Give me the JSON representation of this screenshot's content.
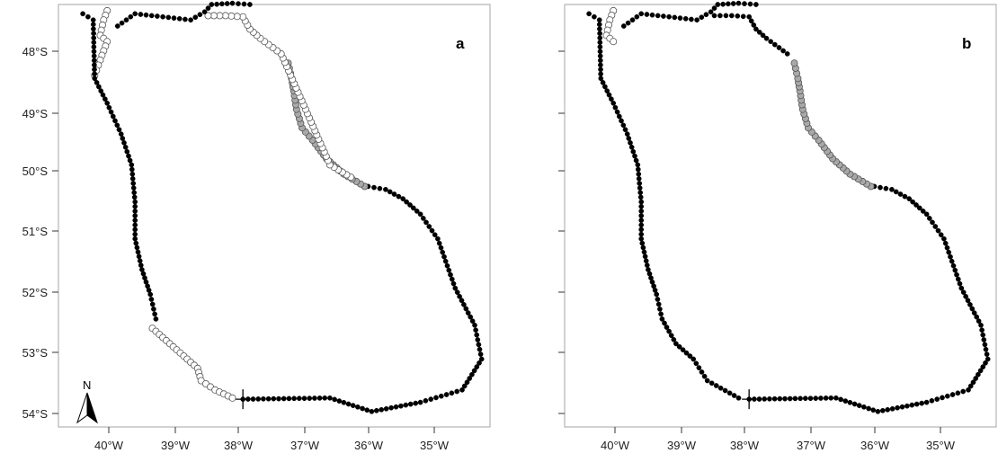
{
  "figure": {
    "panels": [
      {
        "label": "a",
        "x_ticks": [
          "40°W",
          "39°W",
          "38°W",
          "37°W",
          "36°W",
          "35°W"
        ],
        "y_ticks": [
          "48°S",
          "49°S",
          "50°S",
          "51°S",
          "52°S",
          "53°S",
          "54°S"
        ],
        "north_arrow_label": "N",
        "has_north_arrow": true
      },
      {
        "label": "b",
        "x_ticks": [
          "40°W",
          "39°W",
          "38°W",
          "37°W",
          "36°W",
          "35°W"
        ],
        "y_ticks": [
          "48°S",
          "49°S",
          "50°S",
          "51°S",
          "52°S",
          "53°S",
          "54°S"
        ],
        "north_arrow_label": "",
        "has_north_arrow": false
      }
    ]
  },
  "chart_data": [
    {
      "type": "scatter",
      "panel": "a",
      "x_ticks": [
        -40,
        -39,
        -38,
        -37,
        -36,
        -35
      ],
      "y_ticks": [
        -48,
        -49,
        -50,
        -51,
        -52,
        -53,
        -54
      ],
      "xlim": [
        -40.7,
        -34.5
      ],
      "ylim": [
        -54.45,
        -47.6
      ],
      "start_marker": {
        "lon": -38.05,
        "lat": -54.0
      },
      "marker_colors": {
        "black": "#000000",
        "white": "#ffffff",
        "grey": "#a9a9a9"
      },
      "segments": [
        {
          "color": "black",
          "points": [
            [
              -38.05,
              -54.0
            ],
            [
              -36.8,
              -53.98
            ],
            [
              -36.2,
              -54.2
            ],
            [
              -35.5,
              -54.05
            ],
            [
              -34.9,
              -53.85
            ],
            [
              -34.62,
              -53.35
            ],
            [
              -34.72,
              -52.8
            ],
            [
              -35.0,
              -52.2
            ],
            [
              -35.25,
              -51.4
            ],
            [
              -35.5,
              -51.0
            ],
            [
              -35.75,
              -50.75
            ],
            [
              -36.0,
              -50.6
            ],
            [
              -36.25,
              -50.55
            ]
          ]
        },
        {
          "color": "grey",
          "points": [
            [
              -36.3,
              -50.55
            ],
            [
              -36.6,
              -50.35
            ],
            [
              -36.85,
              -50.1
            ],
            [
              -37.05,
              -49.8
            ],
            [
              -37.2,
              -49.6
            ],
            [
              -37.28,
              -49.3
            ],
            [
              -37.32,
              -49.0
            ],
            [
              -37.35,
              -48.8
            ],
            [
              -37.4,
              -48.55
            ]
          ]
        },
        {
          "color": "white",
          "points": [
            [
              -36.5,
              -50.4
            ],
            [
              -36.8,
              -50.2
            ],
            [
              -37.5,
              -48.4
            ],
            [
              -37.8,
              -48.15
            ],
            [
              -37.95,
              -48.0
            ],
            [
              -38.05,
              -47.8
            ],
            [
              -38.3,
              -47.78
            ],
            [
              -38.55,
              -47.78
            ]
          ]
        },
        {
          "color": "black",
          "points": [
            [
              -37.95,
              -47.6
            ],
            [
              -38.2,
              -47.58
            ],
            [
              -38.5,
              -47.6
            ],
            [
              -38.6,
              -47.72
            ],
            [
              -38.8,
              -47.85
            ],
            [
              -39.2,
              -47.8
            ],
            [
              -39.6,
              -47.75
            ],
            [
              -39.85,
              -47.95
            ]
          ]
        },
        {
          "color": "white",
          "points": [
            [
              -40.0,
              -47.7
            ],
            [
              -40.05,
              -47.85
            ],
            [
              -40.1,
              -48.1
            ],
            [
              -40.0,
              -48.2
            ],
            [
              -40.05,
              -48.35
            ],
            [
              -40.1,
              -48.5
            ],
            [
              -40.18,
              -48.75
            ]
          ]
        },
        {
          "color": "black",
          "points": [
            [
              -40.35,
              -47.75
            ],
            [
              -40.2,
              -47.85
            ],
            [
              -40.18,
              -48.8
            ],
            [
              -40.0,
              -49.2
            ],
            [
              -39.8,
              -49.7
            ],
            [
              -39.65,
              -50.2
            ],
            [
              -39.6,
              -50.8
            ],
            [
              -39.6,
              -51.4
            ],
            [
              -39.5,
              -51.9
            ],
            [
              -39.38,
              -52.3
            ],
            [
              -39.3,
              -52.7
            ]
          ]
        },
        {
          "color": "white",
          "points": [
            [
              -39.35,
              -52.85
            ],
            [
              -39.1,
              -53.1
            ],
            [
              -38.85,
              -53.35
            ],
            [
              -38.7,
              -53.5
            ],
            [
              -38.65,
              -53.7
            ],
            [
              -38.45,
              -53.85
            ],
            [
              -38.2,
              -53.98
            ]
          ]
        }
      ]
    },
    {
      "type": "scatter",
      "panel": "b",
      "x_ticks": [
        -40,
        -39,
        -38,
        -37,
        -36,
        -35
      ],
      "y_ticks": [
        -48,
        -49,
        -50,
        -51,
        -52,
        -53,
        -54
      ],
      "xlim": [
        -40.7,
        -34.5
      ],
      "ylim": [
        -54.45,
        -47.6
      ],
      "start_marker": {
        "lon": -38.05,
        "lat": -54.0
      },
      "marker_colors": {
        "black": "#000000",
        "white": "#ffffff",
        "grey": "#a9a9a9"
      },
      "segments": [
        {
          "color": "black",
          "points": [
            [
              -38.05,
              -54.0
            ],
            [
              -36.8,
              -53.98
            ],
            [
              -36.2,
              -54.2
            ],
            [
              -35.5,
              -54.05
            ],
            [
              -34.9,
              -53.85
            ],
            [
              -34.62,
              -53.35
            ],
            [
              -34.72,
              -52.8
            ],
            [
              -35.0,
              -52.2
            ],
            [
              -35.25,
              -51.4
            ],
            [
              -35.5,
              -51.0
            ],
            [
              -35.75,
              -50.75
            ],
            [
              -36.0,
              -50.6
            ],
            [
              -36.25,
              -50.55
            ]
          ]
        },
        {
          "color": "grey",
          "points": [
            [
              -36.3,
              -50.55
            ],
            [
              -36.6,
              -50.35
            ],
            [
              -36.85,
              -50.1
            ],
            [
              -37.05,
              -49.8
            ],
            [
              -37.2,
              -49.6
            ],
            [
              -37.28,
              -49.3
            ],
            [
              -37.32,
              -49.0
            ],
            [
              -37.35,
              -48.8
            ],
            [
              -37.4,
              -48.55
            ]
          ]
        },
        {
          "color": "black",
          "points": [
            [
              -37.5,
              -48.4
            ],
            [
              -37.8,
              -48.15
            ],
            [
              -37.95,
              -48.0
            ],
            [
              -38.05,
              -47.8
            ],
            [
              -38.3,
              -47.78
            ],
            [
              -38.55,
              -47.78
            ]
          ]
        },
        {
          "color": "black",
          "points": [
            [
              -37.95,
              -47.6
            ],
            [
              -38.2,
              -47.58
            ],
            [
              -38.5,
              -47.6
            ],
            [
              -38.6,
              -47.72
            ],
            [
              -38.8,
              -47.85
            ],
            [
              -39.2,
              -47.8
            ],
            [
              -39.6,
              -47.75
            ],
            [
              -39.85,
              -47.95
            ]
          ]
        },
        {
          "color": "white",
          "points": [
            [
              -40.0,
              -47.7
            ],
            [
              -40.05,
              -47.85
            ],
            [
              -40.1,
              -48.1
            ],
            [
              -40.0,
              -48.2
            ]
          ]
        },
        {
          "color": "black",
          "points": [
            [
              -40.35,
              -47.75
            ],
            [
              -40.2,
              -47.85
            ],
            [
              -40.18,
              -48.8
            ],
            [
              -40.0,
              -49.2
            ],
            [
              -39.8,
              -49.7
            ],
            [
              -39.65,
              -50.2
            ],
            [
              -39.6,
              -50.8
            ],
            [
              -39.6,
              -51.4
            ],
            [
              -39.5,
              -51.9
            ],
            [
              -39.38,
              -52.3
            ],
            [
              -39.3,
              -52.7
            ],
            [
              -39.1,
              -53.1
            ],
            [
              -38.85,
              -53.35
            ],
            [
              -38.65,
              -53.7
            ],
            [
              -38.2,
              -53.98
            ]
          ]
        }
      ]
    }
  ]
}
